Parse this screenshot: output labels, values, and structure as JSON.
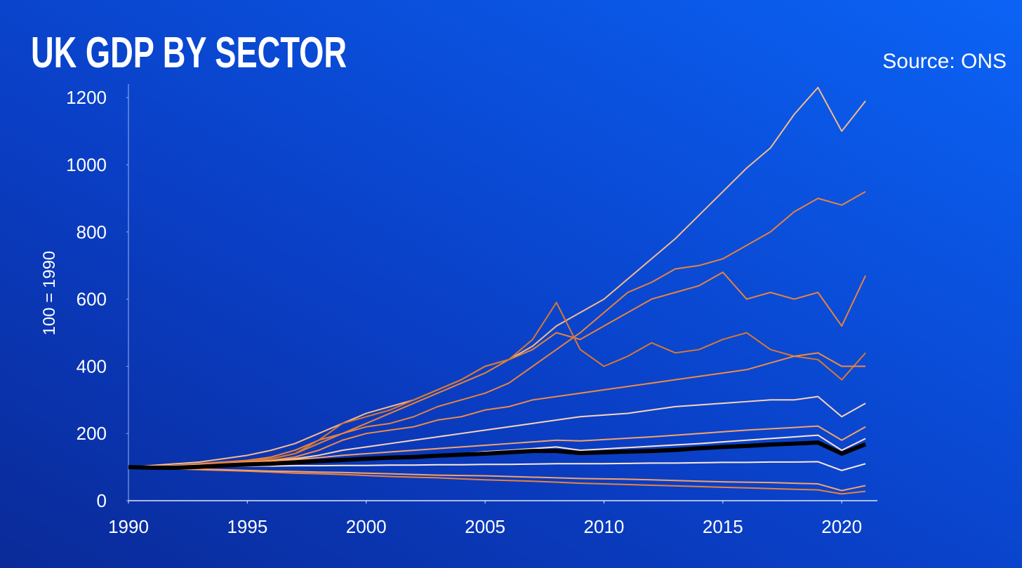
{
  "chart_data": {
    "type": "line",
    "title": "UK GDP BY SECTOR",
    "source": "Source: ONS",
    "y_label": "100 = 1990",
    "x": [
      1990,
      1991,
      1992,
      1993,
      1994,
      1995,
      1996,
      1997,
      1998,
      1999,
      2000,
      2001,
      2002,
      2003,
      2004,
      2005,
      2006,
      2007,
      2008,
      2009,
      2010,
      2011,
      2012,
      2013,
      2014,
      2015,
      2016,
      2017,
      2018,
      2019,
      2020,
      2021
    ],
    "xlim": [
      1990,
      2021.5
    ],
    "xticks": [
      1990,
      1995,
      2000,
      2005,
      2010,
      2015,
      2020
    ],
    "ylim": [
      0,
      1240
    ],
    "yticks": [
      0,
      200,
      400,
      600,
      800,
      1000,
      1200
    ],
    "series": [
      {
        "color": "#f7b98c",
        "values": [
          100,
          105,
          110,
          115,
          125,
          135,
          150,
          170,
          200,
          230,
          260,
          280,
          300,
          330,
          360,
          400,
          420,
          460,
          520,
          560,
          600,
          660,
          720,
          780,
          850,
          920,
          990,
          1050,
          1150,
          1230,
          1100,
          1190
        ]
      },
      {
        "color": "#e8823e",
        "values": [
          100,
          102,
          105,
          110,
          115,
          120,
          130,
          150,
          180,
          200,
          220,
          230,
          250,
          280,
          300,
          320,
          350,
          400,
          450,
          500,
          560,
          620,
          650,
          690,
          700,
          720,
          760,
          800,
          860,
          900,
          880,
          920
        ]
      },
      {
        "color": "#e8823e",
        "values": [
          100,
          102,
          104,
          108,
          112,
          118,
          125,
          140,
          170,
          200,
          230,
          260,
          290,
          320,
          350,
          380,
          420,
          450,
          500,
          480,
          520,
          560,
          600,
          620,
          640,
          680,
          600,
          620,
          600,
          620,
          520,
          670
        ]
      },
      {
        "color": "#d9782f",
        "values": [
          100,
          100,
          102,
          105,
          110,
          115,
          125,
          140,
          180,
          230,
          250,
          270,
          300,
          330,
          360,
          400,
          420,
          480,
          590,
          450,
          400,
          430,
          470,
          440,
          450,
          480,
          500,
          450,
          430,
          420,
          360,
          440
        ]
      },
      {
        "color": "#ef8a45",
        "values": [
          100,
          101,
          103,
          106,
          110,
          115,
          120,
          130,
          150,
          180,
          200,
          210,
          220,
          240,
          250,
          270,
          280,
          300,
          310,
          320,
          330,
          340,
          350,
          360,
          370,
          380,
          390,
          410,
          430,
          440,
          400,
          400
        ]
      },
      {
        "color": "#fbd3b8",
        "values": [
          100,
          101,
          103,
          105,
          108,
          112,
          118,
          125,
          135,
          150,
          160,
          170,
          180,
          190,
          200,
          210,
          220,
          230,
          240,
          250,
          255,
          260,
          270,
          280,
          285,
          290,
          295,
          300,
          300,
          310,
          250,
          290
        ]
      },
      {
        "color": "#f4a36b",
        "values": [
          100,
          102,
          104,
          107,
          110,
          114,
          118,
          122,
          128,
          135,
          140,
          145,
          150,
          155,
          160,
          165,
          170,
          175,
          180,
          178,
          182,
          186,
          190,
          195,
          200,
          205,
          210,
          214,
          218,
          222,
          180,
          220
        ]
      },
      {
        "color": "#ffe4d2",
        "values": [
          100,
          101,
          102,
          104,
          106,
          108,
          110,
          113,
          116,
          120,
          124,
          128,
          132,
          136,
          140,
          146,
          150,
          155,
          160,
          150,
          154,
          158,
          162,
          166,
          170,
          175,
          180,
          185,
          190,
          195,
          150,
          185
        ]
      },
      {
        "color": "#e8823e",
        "values": [
          100,
          98,
          95,
          92,
          90,
          88,
          85,
          82,
          80,
          78,
          75,
          72,
          70,
          68,
          65,
          62,
          60,
          58,
          55,
          52,
          50,
          48,
          46,
          44,
          42,
          40,
          38,
          36,
          34,
          32,
          20,
          28
        ]
      },
      {
        "color": "#f4a36b",
        "values": [
          100,
          97,
          95,
          94,
          92,
          90,
          88,
          87,
          85,
          84,
          82,
          80,
          78,
          76,
          75,
          74,
          72,
          70,
          68,
          66,
          65,
          64,
          62,
          60,
          58,
          56,
          55,
          54,
          52,
          50,
          30,
          45
        ]
      },
      {
        "color": "#fde8da",
        "values": [
          100,
          100,
          101,
          102,
          102,
          103,
          103,
          104,
          104,
          105,
          105,
          106,
          106,
          107,
          107,
          108,
          108,
          109,
          110,
          110,
          110,
          111,
          112,
          112,
          113,
          114,
          114,
          115,
          115,
          116,
          90,
          110
        ]
      },
      {
        "color": "#000000",
        "values": [
          100,
          98,
          98,
          101,
          105,
          108,
          110,
          114,
          118,
          121,
          125,
          128,
          130,
          134,
          137,
          140,
          144,
          148,
          148,
          142,
          144,
          146,
          148,
          151,
          156,
          160,
          163,
          167,
          170,
          173,
          140,
          168
        ]
      }
    ]
  }
}
